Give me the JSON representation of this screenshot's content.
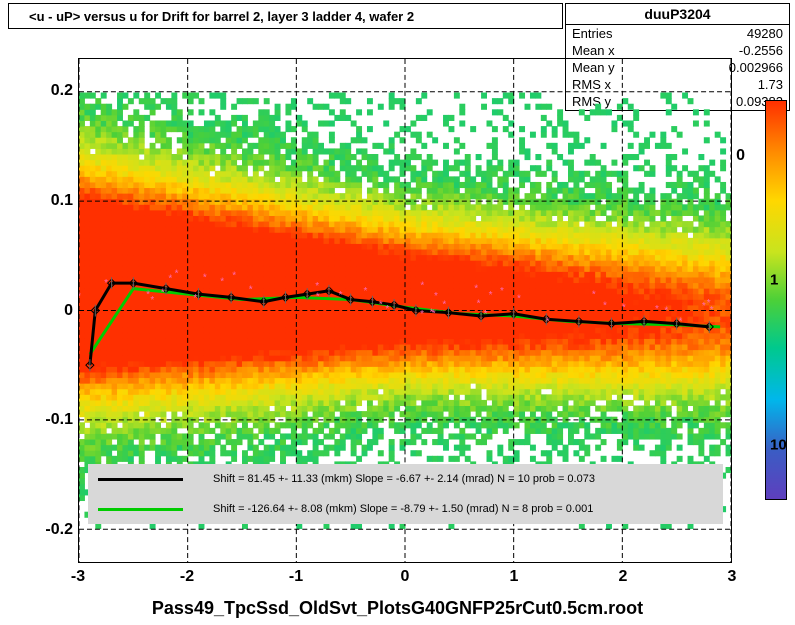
{
  "title": "<u - uP>      versus    u for Drift for barrel 2, layer 3 ladder 4, wafer 2",
  "stats": {
    "header": "duuP3204",
    "entries_label": "Entries",
    "entries_value": "49280",
    "meanx_label": "Mean x",
    "meanx_value": "-0.2556",
    "meany_label": "Mean y",
    "meany_value": "0.002966",
    "rmsx_label": "RMS x",
    "rmsx_value": "1.73",
    "rmsy_label": "RMS y",
    "rmsy_value": "0.09382"
  },
  "chart": {
    "type": "heatmap_with_profile",
    "xlim": [
      -3,
      3
    ],
    "ylim": [
      -0.23,
      0.23
    ],
    "x_ticks": [
      -3,
      -2,
      -1,
      0,
      1,
      2,
      3
    ],
    "y_ticks": [
      -0.2,
      -0.1,
      0,
      0.1,
      0.2
    ],
    "grid_color": "#000000",
    "background_color": "#ffffff",
    "tick_fontsize": 16,
    "title_fontsize": 13
  },
  "colorbar": {
    "zmin": 0.1,
    "zmax": 20,
    "scale": "log",
    "labels": {
      "one": "1",
      "ten": "10"
    },
    "gradient": [
      {
        "stop": 0,
        "color": "#5e3fbe"
      },
      {
        "stop": 0.12,
        "color": "#3b5cc4"
      },
      {
        "stop": 0.25,
        "color": "#00b7eb"
      },
      {
        "stop": 0.38,
        "color": "#00c98d"
      },
      {
        "stop": 0.5,
        "color": "#4cd038"
      },
      {
        "stop": 0.62,
        "color": "#c8e41e"
      },
      {
        "stop": 0.75,
        "color": "#ffd700"
      },
      {
        "stop": 0.87,
        "color": "#ff8c00"
      },
      {
        "stop": 1,
        "color": "#ff3000"
      }
    ]
  },
  "legend": {
    "line1_color": "#000000",
    "line1_text": "Shift =     81.45 +- 11.33 (mkm) Slope =     -6.67 +- 2.14 (mrad)  N = 10 prob = 0.073",
    "line2_color": "#00cc00",
    "line2_text": "Shift =  -126.64 +- 8.08 (mkm) Slope =     -8.79 +- 1.50 (mrad)  N = 8 prob = 0.001"
  },
  "x_axis_title": "Pass49_TpcSsd_OldSvt_PlotsG40GNFP25rCut0.5cm.root",
  "profile_black": {
    "color": "#000000",
    "line_width": 3,
    "x": [
      -2.9,
      -2.85,
      -2.7,
      -2.5,
      -2.2,
      -1.9,
      -1.6,
      -1.3,
      -1.1,
      -0.9,
      -0.7,
      -0.5,
      -0.3,
      -0.1,
      0.1,
      0.4,
      0.7,
      1.0,
      1.3,
      1.6,
      1.9,
      2.2,
      2.5,
      2.8
    ],
    "y": [
      -0.05,
      0.0,
      0.025,
      0.025,
      0.02,
      0.015,
      0.012,
      0.008,
      0.012,
      0.015,
      0.018,
      0.01,
      0.008,
      0.005,
      0.0,
      -0.002,
      -0.005,
      -0.003,
      -0.008,
      -0.01,
      -0.012,
      -0.01,
      -0.012,
      -0.015
    ]
  },
  "profile_green": {
    "color": "#00cc00",
    "line_width": 3,
    "x": [
      -2.9,
      -2.5,
      -2.0,
      -1.5,
      -1.0,
      -0.5,
      0.0,
      0.5,
      1.0,
      1.5,
      2.0,
      2.5,
      2.9
    ],
    "y": [
      -0.04,
      0.02,
      0.015,
      0.01,
      0.012,
      0.01,
      0.003,
      -0.003,
      -0.005,
      -0.01,
      -0.012,
      -0.013,
      -0.015
    ]
  },
  "zero_right_label": "0"
}
